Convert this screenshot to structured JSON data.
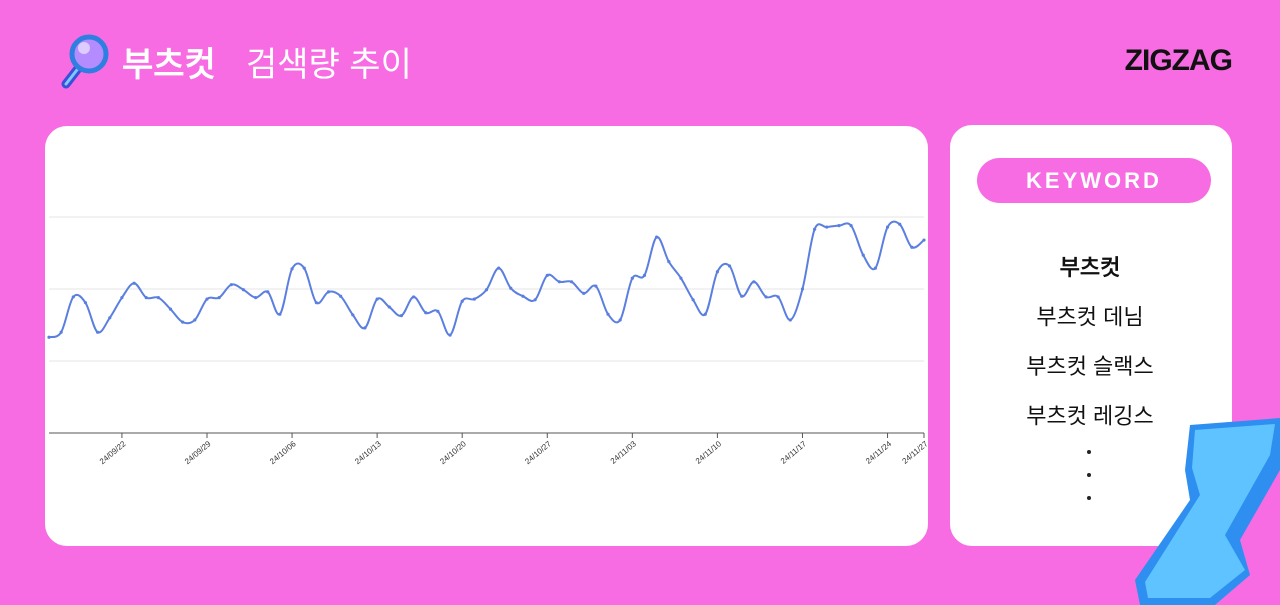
{
  "header": {
    "title_bold": "부츠컷",
    "title_rest": "검색량 추이",
    "logo": "ZIGZAG"
  },
  "keywords": {
    "label": "KEYWORD",
    "items": [
      "부츠컷",
      "부츠컷 데님",
      "부츠컷 슬랙스",
      "부츠컷 레깅스"
    ]
  },
  "chart_data": {
    "type": "line",
    "categories": [
      null,
      null,
      null,
      null,
      null,
      null,
      "24/09/22",
      null,
      null,
      null,
      null,
      null,
      null,
      "24/09/29",
      null,
      null,
      null,
      null,
      null,
      null,
      "24/10/06",
      null,
      null,
      null,
      null,
      null,
      null,
      "24/10/13",
      null,
      null,
      null,
      null,
      null,
      null,
      "24/10/20",
      null,
      null,
      null,
      null,
      null,
      null,
      "24/10/27",
      null,
      null,
      null,
      null,
      null,
      null,
      "24/11/03",
      null,
      null,
      null,
      null,
      null,
      null,
      "24/11/10",
      null,
      null,
      null,
      null,
      null,
      null,
      "24/11/17",
      null,
      null,
      null,
      null,
      null,
      null,
      "24/11/24",
      null,
      null,
      "24/11/27"
    ],
    "series": [
      {
        "color": "#5b7fe0",
        "values": [
          1.33,
          1.4,
          1.89,
          1.81,
          1.4,
          1.6,
          1.88,
          2.08,
          1.88,
          1.88,
          1.72,
          1.54,
          1.57,
          1.86,
          1.88,
          2.06,
          1.99,
          1.88,
          1.96,
          1.65,
          2.28,
          2.29,
          1.81,
          1.96,
          1.9,
          1.64,
          1.46,
          1.86,
          1.75,
          1.63,
          1.89,
          1.67,
          1.69,
          1.36,
          1.83,
          1.86,
          1.99,
          2.29,
          2.01,
          1.9,
          1.85,
          2.19,
          2.1,
          2.1,
          1.94,
          2.04,
          1.65,
          1.57,
          2.15,
          2.19,
          2.72,
          2.38,
          2.15,
          1.85,
          1.65,
          2.24,
          2.32,
          1.9,
          2.1,
          1.89,
          1.89,
          1.57,
          2.0,
          2.83,
          2.86,
          2.88,
          2.88,
          2.47,
          2.29,
          2.86,
          2.9,
          2.58,
          2.68
        ]
      }
    ],
    "ylim": [
      0,
      3.5
    ],
    "grid_values": [
      1,
      2,
      3
    ],
    "grid": true
  }
}
